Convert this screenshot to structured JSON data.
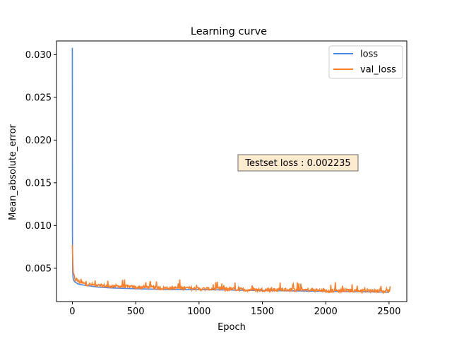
{
  "chart_data": {
    "type": "line",
    "title": "Learning curve",
    "xlabel": "Epoch",
    "ylabel": "Mean_absolute_error",
    "xlim": [
      -125,
      2640
    ],
    "ylim": [
      0.0011,
      0.0316
    ],
    "xticks": [
      0,
      500,
      1000,
      1500,
      2000,
      2500
    ],
    "xtick_labels": [
      "0",
      "500",
      "1000",
      "1500",
      "2000",
      "2500"
    ],
    "yticks": [
      0.005,
      0.01,
      0.015,
      0.02,
      0.025,
      0.03
    ],
    "ytick_labels": [
      "0.005",
      "0.010",
      "0.015",
      "0.020",
      "0.025",
      "0.030"
    ],
    "grid": false,
    "legend_position": "top-right",
    "annotation": "Testset loss : 0.002235",
    "series": [
      {
        "name": "loss",
        "color": "#4a86e8",
        "x": [
          0,
          1,
          2,
          3,
          5,
          10,
          20,
          40,
          60,
          100,
          150,
          200,
          300,
          500,
          800,
          1000,
          1500,
          2000,
          2500
        ],
        "values": [
          0.0308,
          0.009,
          0.006,
          0.0045,
          0.004,
          0.0036,
          0.0034,
          0.0032,
          0.0031,
          0.003,
          0.0029,
          0.0028,
          0.0027,
          0.0026,
          0.0025,
          0.0025,
          0.0024,
          0.0023,
          0.0022
        ]
      },
      {
        "name": "val_loss",
        "color": "#ff7f2a",
        "x": [
          0,
          2,
          5,
          10,
          20,
          40,
          60,
          100,
          150,
          200,
          300,
          400,
          500,
          600,
          700,
          800,
          900,
          1000,
          1200,
          1400,
          1600,
          1800,
          2000,
          2200,
          2400,
          2510
        ],
        "values": [
          0.0075,
          0.0058,
          0.0045,
          0.004,
          0.0037,
          0.0034,
          0.0033,
          0.0031,
          0.003,
          0.0029,
          0.0028,
          0.0028,
          0.0027,
          0.0027,
          0.0026,
          0.0026,
          0.0026,
          0.0025,
          0.0025,
          0.0024,
          0.0024,
          0.0024,
          0.0023,
          0.0023,
          0.0023,
          0.0022
        ],
        "noise_amplitude": 0.0004
      }
    ]
  }
}
